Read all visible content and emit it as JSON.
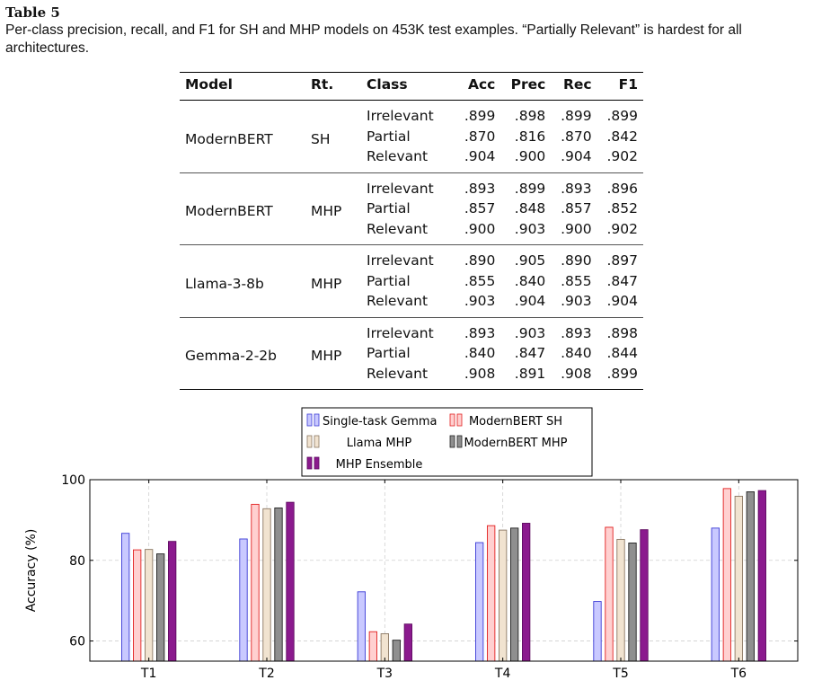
{
  "caption": {
    "title": "Table 5",
    "text": "Per-class precision, recall, and F1 for SH and MHP models on 453K test examples. “Partially Relevant” is hardest for all architectures."
  },
  "table": {
    "headers": [
      "Model",
      "Rt.",
      "Class",
      "Acc",
      "Prec",
      "Rec",
      "F1"
    ],
    "groups": [
      {
        "model": "ModernBERT",
        "rt": "SH",
        "rows": [
          [
            "Irrelevant",
            ".899",
            ".898",
            ".899",
            ".899"
          ],
          [
            "Partial",
            ".870",
            ".816",
            ".870",
            ".842"
          ],
          [
            "Relevant",
            ".904",
            ".900",
            ".904",
            ".902"
          ]
        ]
      },
      {
        "model": "ModernBERT",
        "rt": "MHP",
        "rows": [
          [
            "Irrelevant",
            ".893",
            ".899",
            ".893",
            ".896"
          ],
          [
            "Partial",
            ".857",
            ".848",
            ".857",
            ".852"
          ],
          [
            "Relevant",
            ".900",
            ".903",
            ".900",
            ".902"
          ]
        ]
      },
      {
        "model": "Llama-3-8b",
        "rt": "MHP",
        "rows": [
          [
            "Irrelevant",
            ".890",
            ".905",
            ".890",
            ".897"
          ],
          [
            "Partial",
            ".855",
            ".840",
            ".855",
            ".847"
          ],
          [
            "Relevant",
            ".903",
            ".904",
            ".903",
            ".904"
          ]
        ]
      },
      {
        "model": "Gemma-2-2b",
        "rt": "MHP",
        "rows": [
          [
            "Irrelevant",
            ".893",
            ".903",
            ".893",
            ".898"
          ],
          [
            "Partial",
            ".840",
            ".847",
            ".840",
            ".844"
          ],
          [
            "Relevant",
            ".908",
            ".891",
            ".908",
            ".899"
          ]
        ]
      }
    ]
  },
  "chart_data": {
    "type": "bar",
    "title": "",
    "xlabel": "",
    "ylabel": "Accuracy (%)",
    "ylim": [
      55,
      100
    ],
    "yticks": [
      60,
      80,
      100
    ],
    "grid": true,
    "legend_position": "top-center",
    "categories": [
      "T1",
      "T2",
      "T3",
      "T4",
      "T5",
      "T6"
    ],
    "series": [
      {
        "name": "Single-task Gemma",
        "fill": "#c9c9ff",
        "stroke": "#3b3bd6",
        "values": [
          86.7,
          85.3,
          72.2,
          84.4,
          69.8,
          88.0
        ]
      },
      {
        "name": "ModernBERT SH",
        "fill": "#ffd0d0",
        "stroke": "#e21f1f",
        "values": [
          82.6,
          93.9,
          62.3,
          88.6,
          88.2,
          97.8
        ]
      },
      {
        "name": "Llama MHP",
        "fill": "#f1e3d0",
        "stroke": "#8a7763",
        "values": [
          82.7,
          92.8,
          61.8,
          87.5,
          85.2,
          95.9
        ]
      },
      {
        "name": "ModernBERT MHP",
        "fill": "#8f8f8f",
        "stroke": "#222222",
        "values": [
          81.6,
          93.0,
          60.2,
          88.0,
          84.3,
          97.0
        ]
      },
      {
        "name": "MHP Ensemble",
        "fill": "#8b1a8e",
        "stroke": "#5e0a60",
        "values": [
          84.7,
          94.4,
          64.2,
          89.2,
          87.6,
          97.3
        ]
      }
    ]
  }
}
